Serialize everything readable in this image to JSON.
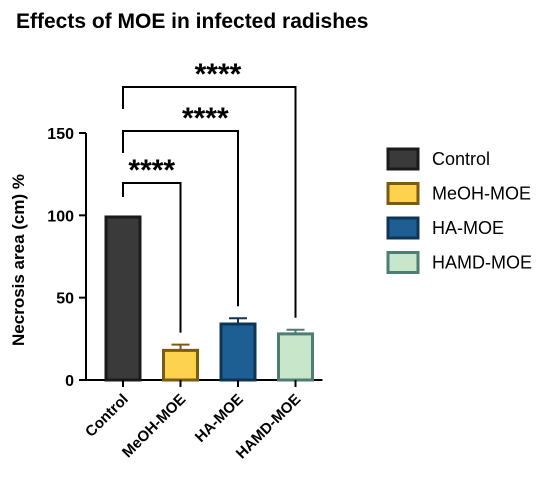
{
  "chart_data": {
    "type": "bar",
    "title": "Effects of MOE in infected radishes",
    "ylabel": "Necrosis area (cm) %",
    "xlabel": "",
    "ylim": [
      0,
      150
    ],
    "yticks": [
      0,
      50,
      100,
      150
    ],
    "categories": [
      "Control",
      "MeOH-MOE",
      "HA-MOE",
      "HAMD-MOE"
    ],
    "values": [
      99,
      18,
      34,
      28
    ],
    "errors": [
      0,
      3.5,
      3.5,
      2.5
    ],
    "fill_colors": [
      "#3a3a3a",
      "#fdd24c",
      "#1e5f93",
      "#c8e6c9"
    ],
    "edge_colors": [
      "#1a1a1a",
      "#7a5b10",
      "#0f3556",
      "#4d7d73"
    ],
    "legend": {
      "position": "right",
      "entries": [
        "Control",
        "MeOH-MOE",
        "HA-MOE",
        "HAMD-MOE"
      ]
    },
    "significance": [
      {
        "from": "Control",
        "to": "MeOH-MOE",
        "label": "****"
      },
      {
        "from": "Control",
        "to": "HA-MOE",
        "label": "****"
      },
      {
        "from": "Control",
        "to": "HAMD-MOE",
        "label": "****"
      }
    ],
    "grid": false
  }
}
